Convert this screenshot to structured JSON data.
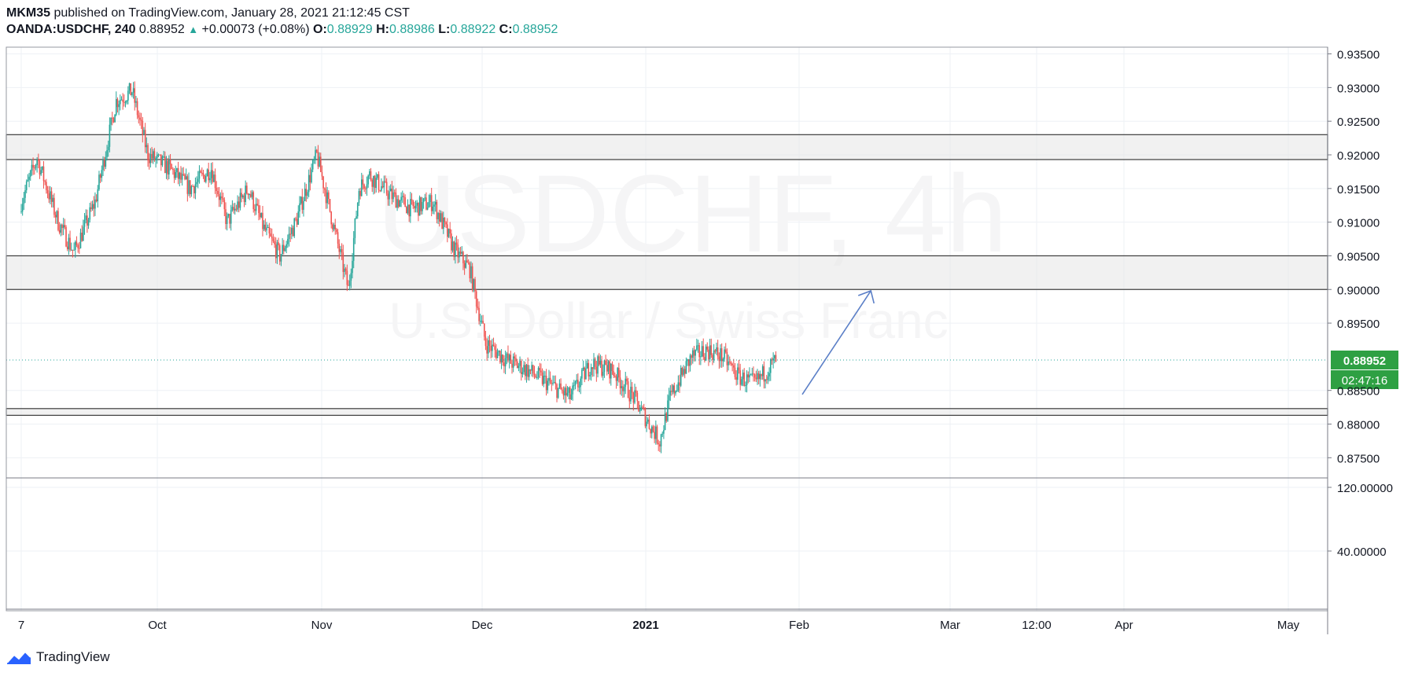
{
  "header": {
    "author": "MKM35",
    "published_text": " published on TradingView.com, January 28, 2021 21:12:45 CST",
    "symbol": "OANDA:USDCHF, 240",
    "last": "0.88952",
    "change": "+0.00073 (+0.08%)",
    "o_label": "O:",
    "o_value": "0.88929",
    "h_label": "H:",
    "h_value": "0.88986",
    "l_label": "L:",
    "l_value": "0.88922",
    "c_label": "C:",
    "c_value": "0.88952"
  },
  "watermark": {
    "symbol": "USDCHF, 4h",
    "name": "U.S. Dollar / Swiss Franc"
  },
  "price_badge": "0.88952",
  "countdown_badge": "02:47:16",
  "brand": "TradingView",
  "colors": {
    "up": "#26a69a",
    "down": "#ef5350",
    "badge": "#2ea043",
    "arrow": "#5b7fc7",
    "zone": "#e5e5e5"
  },
  "chart_data": {
    "type": "candlestick",
    "symbol": "OANDA:USDCHF",
    "interval": "240",
    "ylim": [
      0.872,
      0.936
    ],
    "y_ticks": [
      "0.93500",
      "0.93000",
      "0.92500",
      "0.92000",
      "0.91500",
      "0.91000",
      "0.90500",
      "0.90000",
      "0.89500",
      "0.88500",
      "0.88000",
      "0.87500"
    ],
    "x_ticks": [
      "7",
      "Oct",
      "Nov",
      "Dec",
      "2021",
      "Feb",
      "Mar",
      "12:00",
      "Apr",
      "May"
    ],
    "indicator_ticks": [
      "120.00000",
      "40.00000"
    ],
    "last_price": 0.88952,
    "zones": [
      {
        "from": 0.9193,
        "to": 0.923
      },
      {
        "from": 0.9,
        "to": 0.905
      },
      {
        "from": 0.8813,
        "to": 0.8823
      }
    ],
    "price_path": [
      {
        "date": "2020-09-07",
        "price": 0.913
      },
      {
        "date": "2020-09-10",
        "price": 0.9195
      },
      {
        "date": "2020-09-14",
        "price": 0.91
      },
      {
        "date": "2020-09-17",
        "price": 0.9055
      },
      {
        "date": "2020-09-21",
        "price": 0.913
      },
      {
        "date": "2020-09-25",
        "price": 0.928
      },
      {
        "date": "2020-09-28",
        "price": 0.9295
      },
      {
        "date": "2020-10-01",
        "price": 0.92
      },
      {
        "date": "2020-10-05",
        "price": 0.918
      },
      {
        "date": "2020-10-09",
        "price": 0.915
      },
      {
        "date": "2020-10-13",
        "price": 0.918
      },
      {
        "date": "2020-10-16",
        "price": 0.91
      },
      {
        "date": "2020-10-20",
        "price": 0.915
      },
      {
        "date": "2020-10-23",
        "price": 0.909
      },
      {
        "date": "2020-10-26",
        "price": 0.905
      },
      {
        "date": "2020-10-29",
        "price": 0.91
      },
      {
        "date": "2020-11-02",
        "price": 0.92
      },
      {
        "date": "2020-11-05",
        "price": 0.91
      },
      {
        "date": "2020-11-08",
        "price": 0.9
      },
      {
        "date": "2020-11-10",
        "price": 0.915
      },
      {
        "date": "2020-11-12",
        "price": 0.917
      },
      {
        "date": "2020-11-16",
        "price": 0.914
      },
      {
        "date": "2020-11-20",
        "price": 0.912
      },
      {
        "date": "2020-11-24",
        "price": 0.913
      },
      {
        "date": "2020-11-28",
        "price": 0.906
      },
      {
        "date": "2020-12-01",
        "price": 0.903
      },
      {
        "date": "2020-12-04",
        "price": 0.892
      },
      {
        "date": "2020-12-08",
        "price": 0.8895
      },
      {
        "date": "2020-12-12",
        "price": 0.888
      },
      {
        "date": "2020-12-16",
        "price": 0.886
      },
      {
        "date": "2020-12-20",
        "price": 0.884
      },
      {
        "date": "2020-12-24",
        "price": 0.889
      },
      {
        "date": "2020-12-28",
        "price": 0.888
      },
      {
        "date": "2021-01-01",
        "price": 0.884
      },
      {
        "date": "2021-01-04",
        "price": 0.88
      },
      {
        "date": "2021-01-06",
        "price": 0.8775
      },
      {
        "date": "2021-01-08",
        "price": 0.884
      },
      {
        "date": "2021-01-12",
        "price": 0.89
      },
      {
        "date": "2021-01-15",
        "price": 0.891
      },
      {
        "date": "2021-01-18",
        "price": 0.89
      },
      {
        "date": "2021-01-21",
        "price": 0.887
      },
      {
        "date": "2021-01-24",
        "price": 0.886
      },
      {
        "date": "2021-01-28",
        "price": 0.8895
      }
    ],
    "projection": {
      "from": {
        "date": "2021-02-02",
        "price": 0.8844
      },
      "to": {
        "date": "2021-02-15",
        "price": 0.8998
      }
    }
  }
}
